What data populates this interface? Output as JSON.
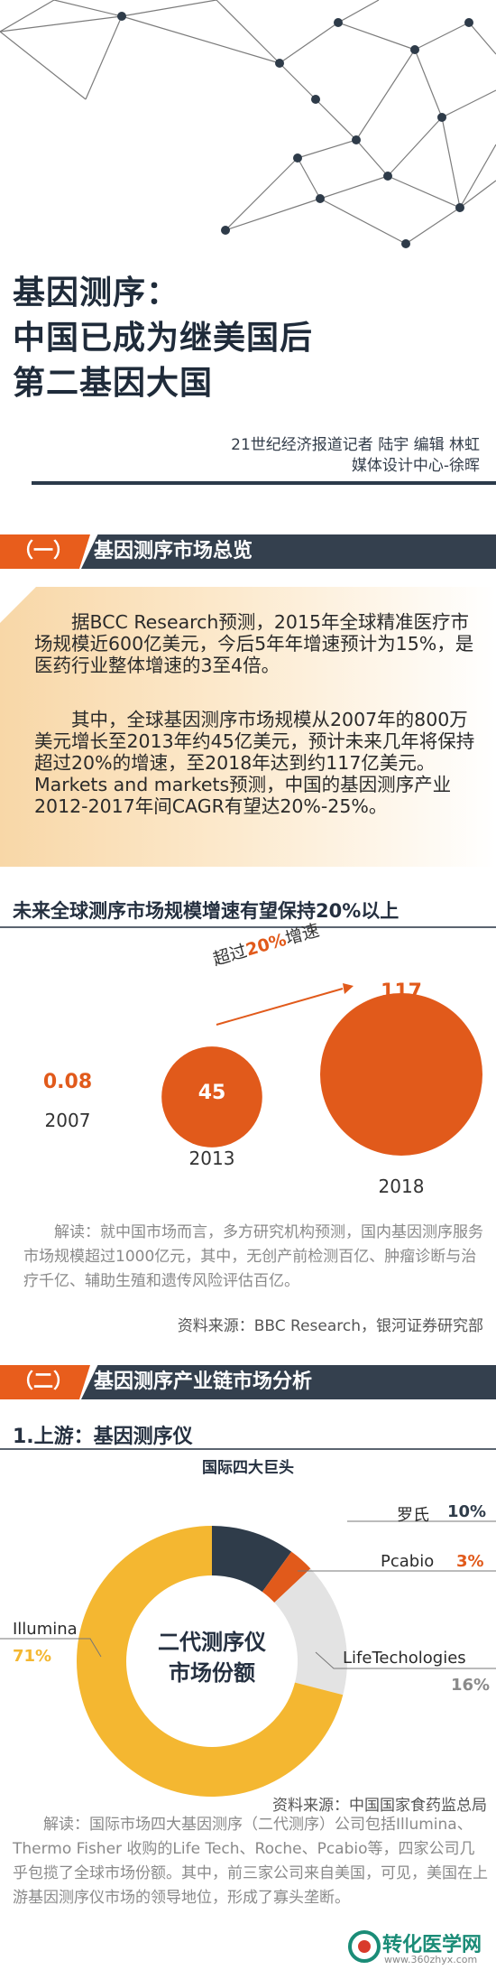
{
  "title": {
    "line1": "基因测序：",
    "line2": "中国已成为继美国后",
    "line3": "第二基因大国"
  },
  "byline": {
    "line1": "21世纪经济报道记者  陆宇  编辑  林虹",
    "line2": "媒体设计中心-徐晖"
  },
  "section1": {
    "number": "（一）",
    "title": "基因测序市场总览"
  },
  "intro": {
    "para1": "据BCC Research预测，2015年全球精准医疗市场规模近600亿美元，今后5年年增速预计为15%，是医药行业整体增速的3至4倍。",
    "para2": "其中，全球基因测序市场规模从2007年的800万美元增长至2013年约45亿美元，预计未来几年将保持超过20%的增速，至2018年达到约117亿美元。Markets and markets预测，中国的基因测序产业2012-2017年间CAGR有望达20%-25%。"
  },
  "chart1": {
    "heading": "未来全球测序市场规模增速有望保持20%以上",
    "arrow_label_pre": "超过",
    "arrow_label_pct": "20%",
    "arrow_label_post": "增速",
    "note": "解读：就中国市场而言，多方研究机构预测，国内基因测序服务市场规模超过1000亿元，其中，无创产前检测百亿、肿瘤诊断与治疗千亿、辅助生殖和遗传风险评估百亿。",
    "source": "资料来源：BBC Research，银河证券研究部"
  },
  "section2": {
    "number": "（二）",
    "title": "基因测序产业链市场分析"
  },
  "chart2": {
    "heading": "1.上游：基因测序仪",
    "caption": "国际四大巨头",
    "center_line1": "二代测序仪",
    "center_line2": "市场份额",
    "source": "资料来源：中国国家食药监总局",
    "note": "解读：国际市场四大基因测序（二代测序）公司包括Illumina、Thermo Fisher 收购的Life Tech、Roche、Pcabio等，四家公司几乎包揽了全球市场份额。其中，前三家公司来自美国，可见，美国在上游基因测序仪市场的领导地位，形成了寡头垄断。"
  },
  "chart_data": [
    {
      "type": "bubble",
      "title": "未来全球测序市场规模增速有望保持20%以上",
      "categories": [
        "2007",
        "2013",
        "2018"
      ],
      "values": [
        0.08,
        45,
        117
      ],
      "value_labels": [
        "0.08",
        "45",
        "117"
      ]
    },
    {
      "type": "pie",
      "title": "二代测序仪市场份额",
      "slices": [
        {
          "name": "罗氏",
          "value": 10,
          "label": "10%",
          "color": "#2f3c4a"
        },
        {
          "name": "Pcabio",
          "value": 3,
          "label": "3%",
          "color": "#e15a1b"
        },
        {
          "name": "LifeTechologies",
          "value": 16,
          "label": "16%",
          "color": "#e3e3e3"
        },
        {
          "name": "Illumina",
          "value": 71,
          "label": "71%",
          "color": "#f4b731"
        }
      ]
    }
  ],
  "logo": {
    "name": "转化医学网",
    "url_text": "www.360zhyx.com"
  },
  "colors": {
    "orange": "#e15a1b",
    "navy": "#34404e",
    "gold": "#f4b731"
  }
}
